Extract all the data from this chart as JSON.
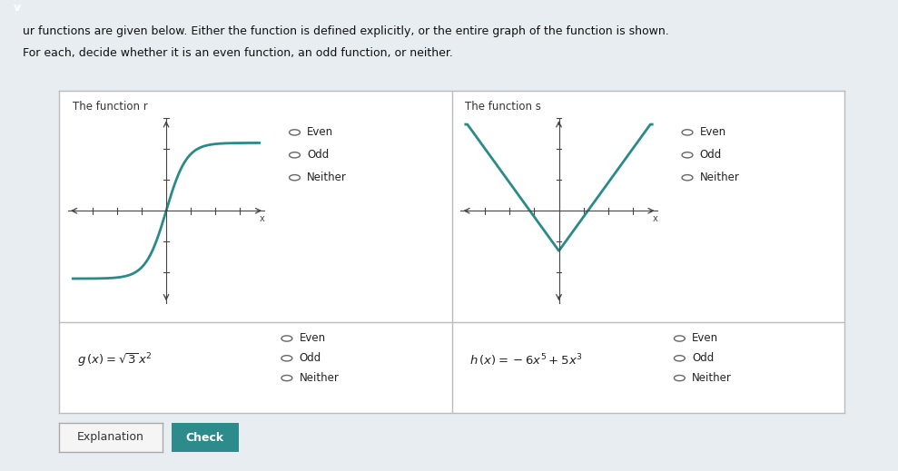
{
  "title_line1": "ur functions are given below. Either the function is defined explicitly, or the entire graph of the function is shown.",
  "title_line2": "For each, decide whether it is an even function, an odd function, or neither.",
  "bg_color": "#e8edf2",
  "panel_bg": "#ffffff",
  "curve_color": "#2a8a8a",
  "axis_color": "#444444",
  "header_r": "The function r",
  "header_s": "The function s",
  "options": [
    "Even",
    "Odd",
    "Neither"
  ],
  "button_explanation": "Explanation",
  "button_check": "Check",
  "top_bar_color": "#3d8eab",
  "check_btn_color": "#2e8b8b",
  "explanation_btn_color": "#f5f5f5",
  "chevron": "v",
  "table_bg": "#f7f7f7"
}
